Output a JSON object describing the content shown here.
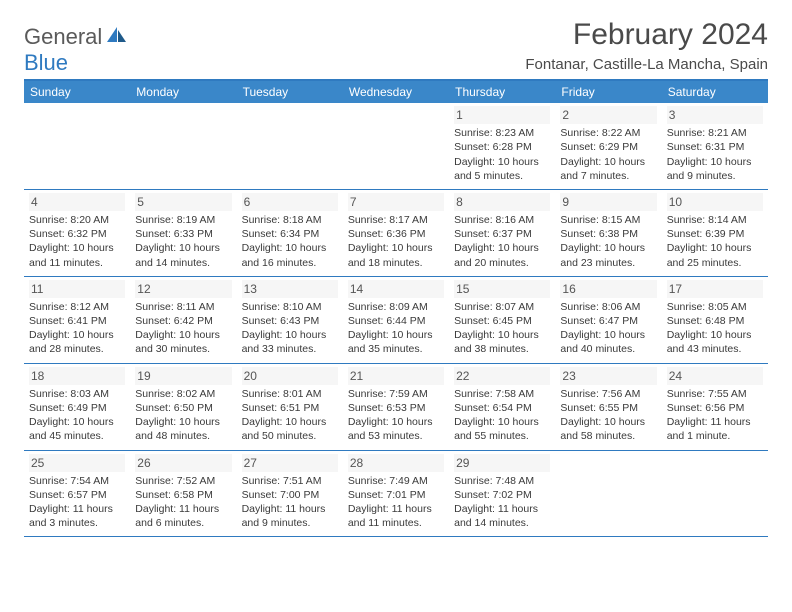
{
  "brand": {
    "part1": "General",
    "part2": "Blue"
  },
  "title": "February 2024",
  "location": "Fontanar, Castille-La Mancha, Spain",
  "colors": {
    "header_bg": "#3a87c9",
    "border": "#2f7ac0",
    "text": "#3a3a3a",
    "title": "#4a4a4a",
    "daynum_bg": "#f6f6f6"
  },
  "day_headers": [
    "Sunday",
    "Monday",
    "Tuesday",
    "Wednesday",
    "Thursday",
    "Friday",
    "Saturday"
  ],
  "weeks": [
    [
      null,
      null,
      null,
      null,
      {
        "n": "1",
        "sr": "Sunrise: 8:23 AM",
        "ss": "Sunset: 6:28 PM",
        "d1": "Daylight: 10 hours",
        "d2": "and 5 minutes."
      },
      {
        "n": "2",
        "sr": "Sunrise: 8:22 AM",
        "ss": "Sunset: 6:29 PM",
        "d1": "Daylight: 10 hours",
        "d2": "and 7 minutes."
      },
      {
        "n": "3",
        "sr": "Sunrise: 8:21 AM",
        "ss": "Sunset: 6:31 PM",
        "d1": "Daylight: 10 hours",
        "d2": "and 9 minutes."
      }
    ],
    [
      {
        "n": "4",
        "sr": "Sunrise: 8:20 AM",
        "ss": "Sunset: 6:32 PM",
        "d1": "Daylight: 10 hours",
        "d2": "and 11 minutes."
      },
      {
        "n": "5",
        "sr": "Sunrise: 8:19 AM",
        "ss": "Sunset: 6:33 PM",
        "d1": "Daylight: 10 hours",
        "d2": "and 14 minutes."
      },
      {
        "n": "6",
        "sr": "Sunrise: 8:18 AM",
        "ss": "Sunset: 6:34 PM",
        "d1": "Daylight: 10 hours",
        "d2": "and 16 minutes."
      },
      {
        "n": "7",
        "sr": "Sunrise: 8:17 AM",
        "ss": "Sunset: 6:36 PM",
        "d1": "Daylight: 10 hours",
        "d2": "and 18 minutes."
      },
      {
        "n": "8",
        "sr": "Sunrise: 8:16 AM",
        "ss": "Sunset: 6:37 PM",
        "d1": "Daylight: 10 hours",
        "d2": "and 20 minutes."
      },
      {
        "n": "9",
        "sr": "Sunrise: 8:15 AM",
        "ss": "Sunset: 6:38 PM",
        "d1": "Daylight: 10 hours",
        "d2": "and 23 minutes."
      },
      {
        "n": "10",
        "sr": "Sunrise: 8:14 AM",
        "ss": "Sunset: 6:39 PM",
        "d1": "Daylight: 10 hours",
        "d2": "and 25 minutes."
      }
    ],
    [
      {
        "n": "11",
        "sr": "Sunrise: 8:12 AM",
        "ss": "Sunset: 6:41 PM",
        "d1": "Daylight: 10 hours",
        "d2": "and 28 minutes."
      },
      {
        "n": "12",
        "sr": "Sunrise: 8:11 AM",
        "ss": "Sunset: 6:42 PM",
        "d1": "Daylight: 10 hours",
        "d2": "and 30 minutes."
      },
      {
        "n": "13",
        "sr": "Sunrise: 8:10 AM",
        "ss": "Sunset: 6:43 PM",
        "d1": "Daylight: 10 hours",
        "d2": "and 33 minutes."
      },
      {
        "n": "14",
        "sr": "Sunrise: 8:09 AM",
        "ss": "Sunset: 6:44 PM",
        "d1": "Daylight: 10 hours",
        "d2": "and 35 minutes."
      },
      {
        "n": "15",
        "sr": "Sunrise: 8:07 AM",
        "ss": "Sunset: 6:45 PM",
        "d1": "Daylight: 10 hours",
        "d2": "and 38 minutes."
      },
      {
        "n": "16",
        "sr": "Sunrise: 8:06 AM",
        "ss": "Sunset: 6:47 PM",
        "d1": "Daylight: 10 hours",
        "d2": "and 40 minutes."
      },
      {
        "n": "17",
        "sr": "Sunrise: 8:05 AM",
        "ss": "Sunset: 6:48 PM",
        "d1": "Daylight: 10 hours",
        "d2": "and 43 minutes."
      }
    ],
    [
      {
        "n": "18",
        "sr": "Sunrise: 8:03 AM",
        "ss": "Sunset: 6:49 PM",
        "d1": "Daylight: 10 hours",
        "d2": "and 45 minutes."
      },
      {
        "n": "19",
        "sr": "Sunrise: 8:02 AM",
        "ss": "Sunset: 6:50 PM",
        "d1": "Daylight: 10 hours",
        "d2": "and 48 minutes."
      },
      {
        "n": "20",
        "sr": "Sunrise: 8:01 AM",
        "ss": "Sunset: 6:51 PM",
        "d1": "Daylight: 10 hours",
        "d2": "and 50 minutes."
      },
      {
        "n": "21",
        "sr": "Sunrise: 7:59 AM",
        "ss": "Sunset: 6:53 PM",
        "d1": "Daylight: 10 hours",
        "d2": "and 53 minutes."
      },
      {
        "n": "22",
        "sr": "Sunrise: 7:58 AM",
        "ss": "Sunset: 6:54 PM",
        "d1": "Daylight: 10 hours",
        "d2": "and 55 minutes."
      },
      {
        "n": "23",
        "sr": "Sunrise: 7:56 AM",
        "ss": "Sunset: 6:55 PM",
        "d1": "Daylight: 10 hours",
        "d2": "and 58 minutes."
      },
      {
        "n": "24",
        "sr": "Sunrise: 7:55 AM",
        "ss": "Sunset: 6:56 PM",
        "d1": "Daylight: 11 hours",
        "d2": "and 1 minute."
      }
    ],
    [
      {
        "n": "25",
        "sr": "Sunrise: 7:54 AM",
        "ss": "Sunset: 6:57 PM",
        "d1": "Daylight: 11 hours",
        "d2": "and 3 minutes."
      },
      {
        "n": "26",
        "sr": "Sunrise: 7:52 AM",
        "ss": "Sunset: 6:58 PM",
        "d1": "Daylight: 11 hours",
        "d2": "and 6 minutes."
      },
      {
        "n": "27",
        "sr": "Sunrise: 7:51 AM",
        "ss": "Sunset: 7:00 PM",
        "d1": "Daylight: 11 hours",
        "d2": "and 9 minutes."
      },
      {
        "n": "28",
        "sr": "Sunrise: 7:49 AM",
        "ss": "Sunset: 7:01 PM",
        "d1": "Daylight: 11 hours",
        "d2": "and 11 minutes."
      },
      {
        "n": "29",
        "sr": "Sunrise: 7:48 AM",
        "ss": "Sunset: 7:02 PM",
        "d1": "Daylight: 11 hours",
        "d2": "and 14 minutes."
      },
      null,
      null
    ]
  ]
}
